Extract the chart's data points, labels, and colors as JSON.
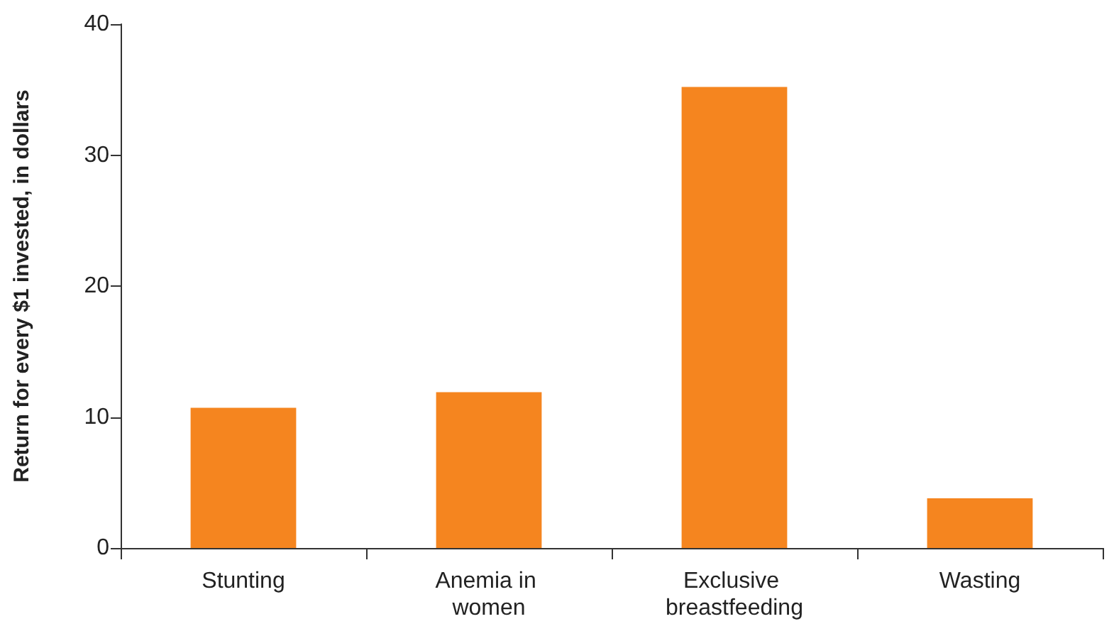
{
  "chart_data": {
    "type": "bar",
    "ylabel": "Return for every $1 invested, in dollars",
    "categories": [
      "Stunting",
      "Anemia in women",
      "Exclusive breastfeeding",
      "Wasting"
    ],
    "values": [
      10.7,
      11.9,
      35.2,
      3.8
    ],
    "color": "#f5851f",
    "ylim": [
      0,
      40
    ],
    "yticks": [
      0,
      10,
      20,
      30,
      40
    ],
    "grid": false
  }
}
